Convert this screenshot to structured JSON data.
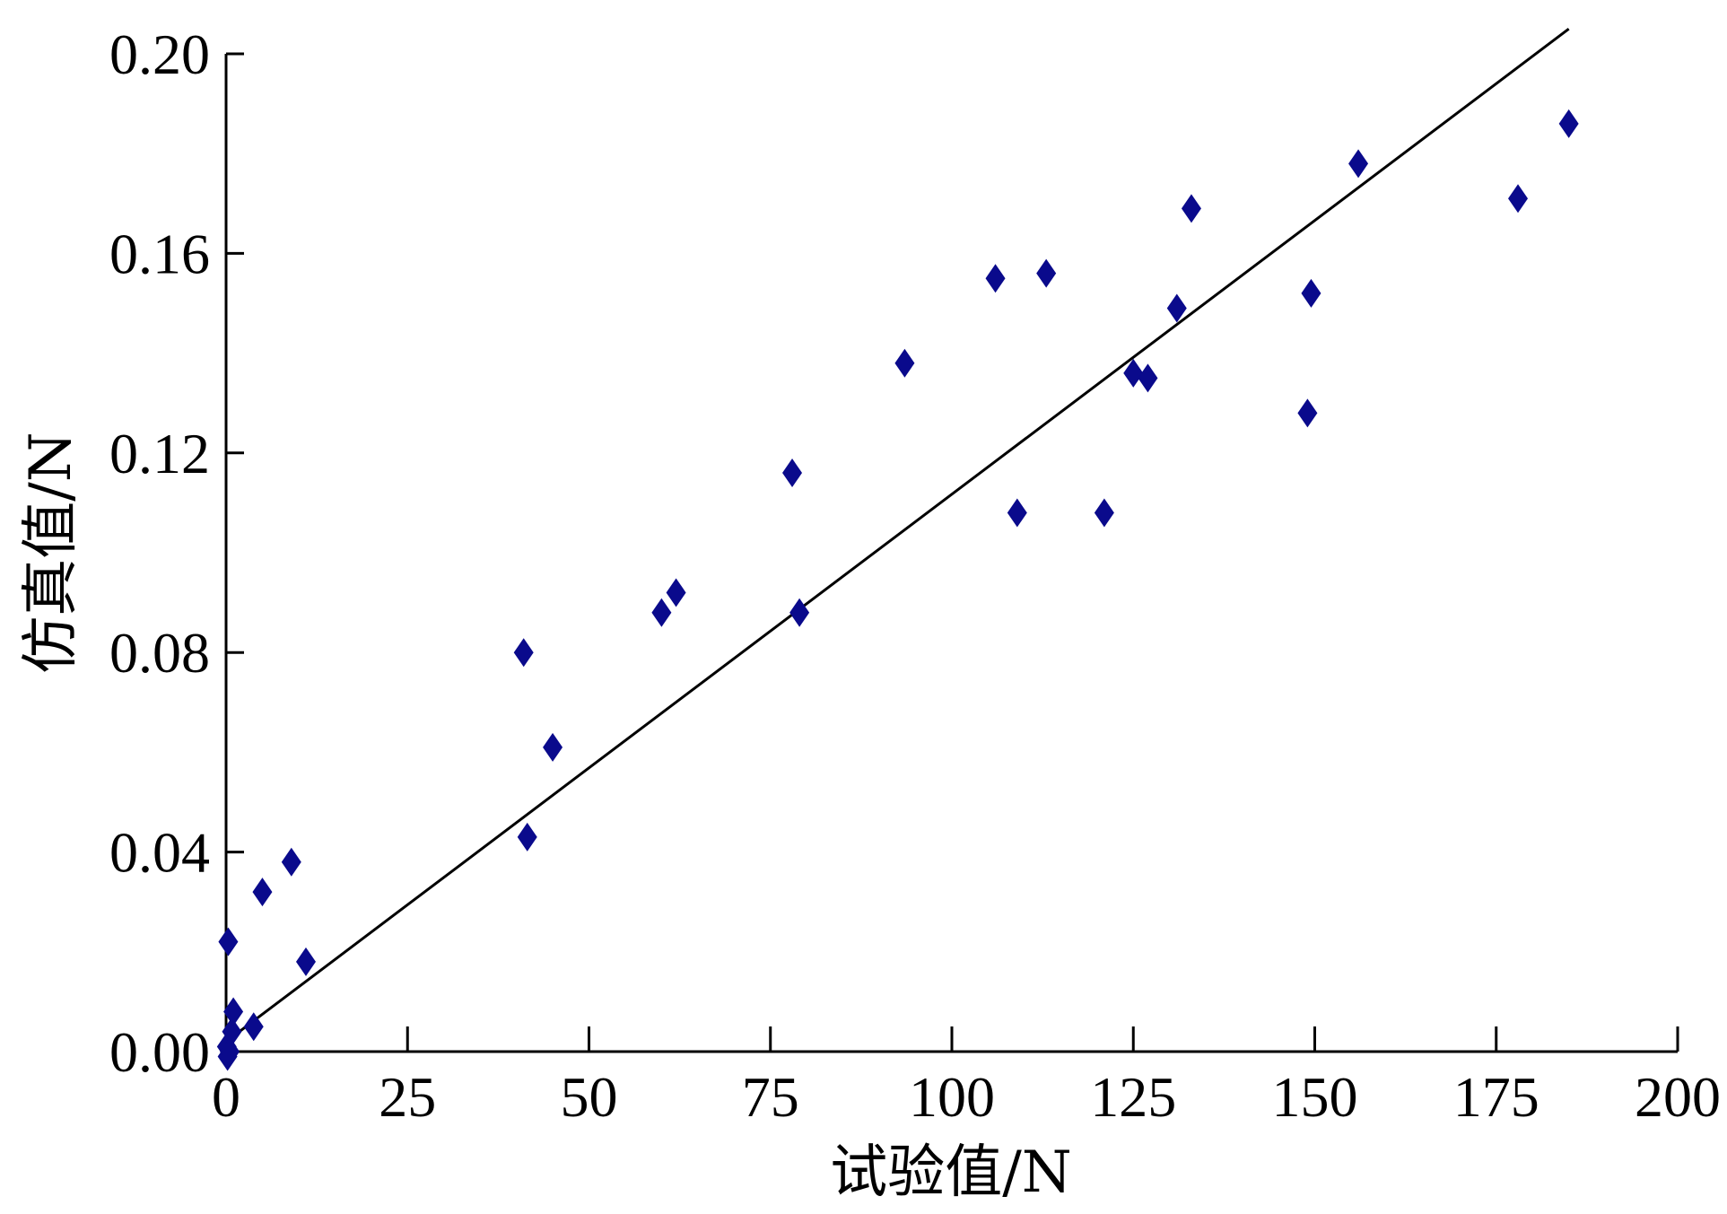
{
  "chart_data": {
    "type": "scatter",
    "title": "",
    "xlabel": "试验值/N",
    "ylabel": "仿真值/N",
    "xlim": [
      0,
      200
    ],
    "ylim": [
      0,
      0.2
    ],
    "x_ticks": [
      "0",
      "25",
      "50",
      "75",
      "100",
      "125",
      "150",
      "175",
      "200"
    ],
    "y_ticks": [
      "0.00",
      "0.04",
      "0.08",
      "0.12",
      "0.16",
      "0.20"
    ],
    "grid": false,
    "legend": "none",
    "colors": {
      "marker": "#0a0a8c",
      "line": "#000000",
      "axis": "#000000"
    },
    "series": [
      {
        "marker": "diamond",
        "points": [
          [
            0.3,
            0.022
          ],
          [
            0.1,
            0.001
          ],
          [
            0.2,
            -0.001
          ],
          [
            0.5,
            0.0
          ],
          [
            0.8,
            0.004
          ],
          [
            1.0,
            0.008
          ],
          [
            3.8,
            0.005
          ],
          [
            5.0,
            0.032
          ],
          [
            9.0,
            0.038
          ],
          [
            11.0,
            0.018
          ],
          [
            41.0,
            0.08
          ],
          [
            41.5,
            0.043
          ],
          [
            45.0,
            0.061
          ],
          [
            60.0,
            0.088
          ],
          [
            62.0,
            0.092
          ],
          [
            78.0,
            0.116
          ],
          [
            79.0,
            0.088
          ],
          [
            93.5,
            0.138
          ],
          [
            106.0,
            0.155
          ],
          [
            109.0,
            0.108
          ],
          [
            113.0,
            0.156
          ],
          [
            121.0,
            0.108
          ],
          [
            125.0,
            0.136
          ],
          [
            127.0,
            0.135
          ],
          [
            131.0,
            0.149
          ],
          [
            133.0,
            0.169
          ],
          [
            149.0,
            0.128
          ],
          [
            149.5,
            0.152
          ],
          [
            156.0,
            0.178
          ],
          [
            178.0,
            0.171
          ],
          [
            185.0,
            0.186
          ]
        ]
      }
    ],
    "fit_line": {
      "x": [
        0,
        185
      ],
      "y": [
        0.002,
        0.205
      ]
    }
  }
}
